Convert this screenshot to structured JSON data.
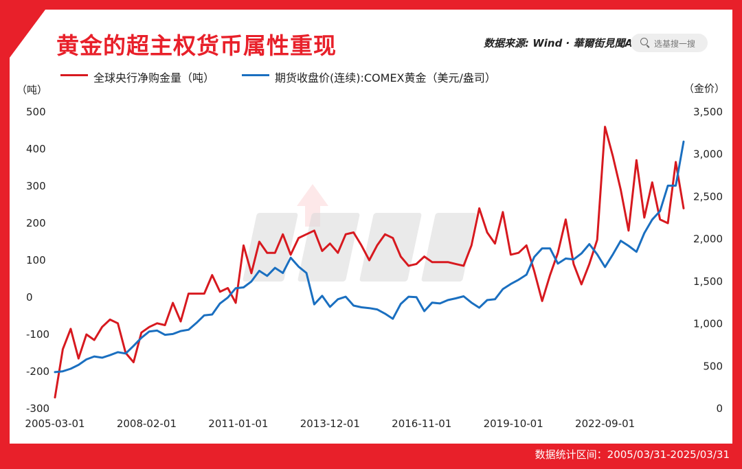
{
  "header": {
    "title": "黄金的超主权货币属性重现",
    "source": "数据来源: Wind · 華爾街見聞App",
    "search_placeholder": "选基搜一搜"
  },
  "footer": {
    "stats_range": "数据统计区间：2005/03/31-2025/03/31"
  },
  "colors": {
    "red_series": "#d7191f",
    "blue_series": "#1a6fc0",
    "brand": "#e8202a"
  },
  "chart_data": {
    "type": "line",
    "title": "黄金的超主权货币属性重现",
    "left_axis": {
      "unit": "（吨）",
      "ylim": [
        -300,
        500
      ],
      "ticks": [
        "500",
        "400",
        "300",
        "200",
        "100",
        "0",
        "-100",
        "-200",
        "-300"
      ]
    },
    "right_axis": {
      "unit": "（金价）",
      "ylim": [
        0,
        3500
      ],
      "ticks": [
        "3,500",
        "3,000",
        "2,500",
        "2,000",
        "1,500",
        "1,000",
        "500",
        "0"
      ]
    },
    "x_ticks": [
      "2005-03-01",
      "2008-02-01",
      "2011-01-01",
      "2013-12-01",
      "2016-11-01",
      "2019-10-01",
      "2022-09-01"
    ],
    "x_range": [
      "2005-03",
      "2025-03"
    ],
    "series": [
      {
        "name": "全球央行净购金量（吨）",
        "axis": "left",
        "x": [
          "2005-03",
          "2005-06",
          "2005-09",
          "2005-12",
          "2006-03",
          "2006-06",
          "2006-09",
          "2006-12",
          "2007-03",
          "2007-06",
          "2007-09",
          "2007-12",
          "2008-03",
          "2008-06",
          "2008-09",
          "2008-12",
          "2009-03",
          "2009-06",
          "2009-09",
          "2009-12",
          "2010-03",
          "2010-06",
          "2010-09",
          "2010-12",
          "2011-03",
          "2011-06",
          "2011-09",
          "2011-12",
          "2012-03",
          "2012-06",
          "2012-09",
          "2012-12",
          "2013-03",
          "2013-06",
          "2013-09",
          "2013-12",
          "2014-03",
          "2014-06",
          "2014-09",
          "2014-12",
          "2015-03",
          "2015-06",
          "2015-09",
          "2015-12",
          "2016-03",
          "2016-06",
          "2016-09",
          "2016-12",
          "2017-03",
          "2017-06",
          "2017-09",
          "2017-12",
          "2018-03",
          "2018-06",
          "2018-09",
          "2018-12",
          "2019-03",
          "2019-06",
          "2019-09",
          "2019-12",
          "2020-03",
          "2020-06",
          "2020-09",
          "2020-12",
          "2021-03",
          "2021-06",
          "2021-09",
          "2021-12",
          "2022-03",
          "2022-06",
          "2022-09",
          "2022-12",
          "2023-03",
          "2023-06",
          "2023-09",
          "2023-12",
          "2024-03",
          "2024-06",
          "2024-09",
          "2024-12",
          "2025-03"
        ],
        "values": [
          -270,
          -140,
          -85,
          -165,
          -100,
          -115,
          -80,
          -60,
          -70,
          -150,
          -175,
          -95,
          -80,
          -70,
          -75,
          -15,
          -65,
          10,
          10,
          10,
          60,
          15,
          25,
          -15,
          140,
          65,
          150,
          120,
          120,
          170,
          115,
          160,
          170,
          180,
          125,
          145,
          120,
          170,
          175,
          140,
          100,
          140,
          170,
          160,
          110,
          85,
          90,
          110,
          95,
          95,
          95,
          90,
          85,
          140,
          240,
          175,
          145,
          230,
          115,
          120,
          140,
          70,
          -10,
          60,
          120,
          210,
          90,
          35,
          90,
          155,
          460,
          380,
          290,
          180,
          370,
          215,
          310,
          210,
          200,
          365,
          240
        ]
      },
      {
        "name": "期货收盘价(连续):COMEX黄金（美元/盎司）",
        "axis": "right",
        "x": [
          "2005-03",
          "2005-06",
          "2005-09",
          "2005-12",
          "2006-03",
          "2006-06",
          "2006-09",
          "2006-12",
          "2007-03",
          "2007-06",
          "2007-09",
          "2007-12",
          "2008-03",
          "2008-06",
          "2008-09",
          "2008-12",
          "2009-03",
          "2009-06",
          "2009-09",
          "2009-12",
          "2010-03",
          "2010-06",
          "2010-09",
          "2010-12",
          "2011-03",
          "2011-06",
          "2011-09",
          "2011-12",
          "2012-03",
          "2012-06",
          "2012-09",
          "2012-12",
          "2013-03",
          "2013-06",
          "2013-09",
          "2013-12",
          "2014-03",
          "2014-06",
          "2014-09",
          "2014-12",
          "2015-03",
          "2015-06",
          "2015-09",
          "2015-12",
          "2016-03",
          "2016-06",
          "2016-09",
          "2016-12",
          "2017-03",
          "2017-06",
          "2017-09",
          "2017-12",
          "2018-03",
          "2018-06",
          "2018-09",
          "2018-12",
          "2019-03",
          "2019-06",
          "2019-09",
          "2019-12",
          "2020-03",
          "2020-06",
          "2020-09",
          "2020-12",
          "2021-03",
          "2021-06",
          "2021-09",
          "2021-12",
          "2022-03",
          "2022-06",
          "2022-09",
          "2022-12",
          "2023-03",
          "2023-06",
          "2023-09",
          "2023-12",
          "2024-03",
          "2024-06",
          "2024-09",
          "2024-12",
          "2025-03"
        ],
        "values": [
          430,
          440,
          470,
          515,
          580,
          615,
          600,
          630,
          665,
          650,
          740,
          835,
          910,
          920,
          870,
          880,
          915,
          930,
          1010,
          1100,
          1110,
          1240,
          1310,
          1420,
          1430,
          1500,
          1625,
          1565,
          1660,
          1600,
          1780,
          1675,
          1600,
          1230,
          1330,
          1200,
          1290,
          1320,
          1215,
          1195,
          1185,
          1170,
          1120,
          1060,
          1235,
          1320,
          1315,
          1150,
          1250,
          1240,
          1280,
          1300,
          1325,
          1250,
          1190,
          1280,
          1290,
          1410,
          1470,
          1520,
          1580,
          1790,
          1890,
          1890,
          1710,
          1770,
          1760,
          1830,
          1940,
          1820,
          1670,
          1820,
          1980,
          1920,
          1850,
          2070,
          2230,
          2330,
          2630,
          2630,
          3150
        ]
      }
    ]
  }
}
